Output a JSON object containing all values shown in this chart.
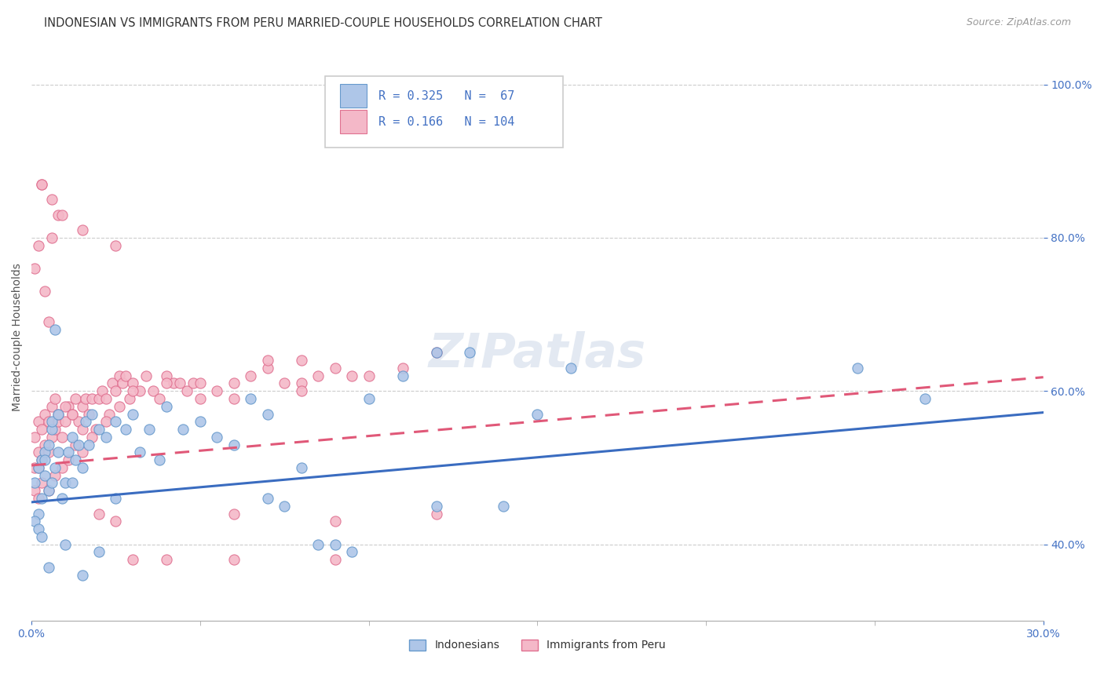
{
  "title": "INDONESIAN VS IMMIGRANTS FROM PERU MARRIED-COUPLE HOUSEHOLDS CORRELATION CHART",
  "source": "Source: ZipAtlas.com",
  "ylabel": "Married-couple Households",
  "xmin": 0.0,
  "xmax": 0.3,
  "ymin": 0.3,
  "ymax": 1.04,
  "R_indonesian": 0.325,
  "N_indonesian": 67,
  "R_peru": 0.166,
  "N_peru": 104,
  "color_indonesian_fill": "#aec6e8",
  "color_indonesian_edge": "#6699cc",
  "color_peru_fill": "#f4b8c8",
  "color_peru_edge": "#e07090",
  "color_indonesian_line": "#3a6cc0",
  "color_peru_line": "#e05878",
  "legend_label_indonesian": "Indonesians",
  "legend_label_peru": "Immigrants from Peru",
  "indonesian_x": [
    0.001,
    0.002,
    0.002,
    0.003,
    0.003,
    0.004,
    0.004,
    0.005,
    0.005,
    0.006,
    0.006,
    0.007,
    0.008,
    0.009,
    0.01,
    0.011,
    0.012,
    0.013,
    0.014,
    0.015,
    0.016,
    0.017,
    0.018,
    0.02,
    0.022,
    0.025,
    0.028,
    0.03,
    0.032,
    0.035,
    0.038,
    0.04,
    0.045,
    0.05,
    0.055,
    0.06,
    0.065,
    0.07,
    0.075,
    0.08,
    0.085,
    0.09,
    0.095,
    0.1,
    0.11,
    0.12,
    0.13,
    0.14,
    0.15,
    0.16,
    0.001,
    0.002,
    0.003,
    0.004,
    0.005,
    0.006,
    0.007,
    0.008,
    0.01,
    0.012,
    0.015,
    0.02,
    0.025,
    0.07,
    0.12,
    0.245,
    0.265
  ],
  "indonesian_y": [
    0.48,
    0.44,
    0.5,
    0.46,
    0.51,
    0.49,
    0.52,
    0.47,
    0.53,
    0.48,
    0.55,
    0.5,
    0.52,
    0.46,
    0.48,
    0.52,
    0.54,
    0.51,
    0.53,
    0.5,
    0.56,
    0.53,
    0.57,
    0.55,
    0.54,
    0.56,
    0.55,
    0.57,
    0.52,
    0.55,
    0.51,
    0.58,
    0.55,
    0.56,
    0.54,
    0.53,
    0.59,
    0.57,
    0.45,
    0.5,
    0.4,
    0.4,
    0.39,
    0.59,
    0.62,
    0.45,
    0.65,
    0.45,
    0.57,
    0.63,
    0.43,
    0.42,
    0.41,
    0.51,
    0.37,
    0.56,
    0.68,
    0.57,
    0.4,
    0.48,
    0.36,
    0.39,
    0.46,
    0.46,
    0.65,
    0.63,
    0.59
  ],
  "peru_x": [
    0.001,
    0.001,
    0.002,
    0.002,
    0.003,
    0.003,
    0.004,
    0.004,
    0.005,
    0.005,
    0.006,
    0.006,
    0.007,
    0.007,
    0.008,
    0.008,
    0.009,
    0.01,
    0.011,
    0.012,
    0.013,
    0.014,
    0.015,
    0.016,
    0.017,
    0.018,
    0.019,
    0.02,
    0.021,
    0.022,
    0.023,
    0.024,
    0.025,
    0.026,
    0.027,
    0.028,
    0.029,
    0.03,
    0.032,
    0.034,
    0.036,
    0.038,
    0.04,
    0.042,
    0.044,
    0.046,
    0.048,
    0.05,
    0.055,
    0.06,
    0.065,
    0.07,
    0.075,
    0.08,
    0.085,
    0.09,
    0.095,
    0.1,
    0.11,
    0.12,
    0.001,
    0.002,
    0.003,
    0.005,
    0.007,
    0.009,
    0.011,
    0.013,
    0.015,
    0.018,
    0.022,
    0.026,
    0.03,
    0.04,
    0.05,
    0.06,
    0.07,
    0.08,
    0.09,
    0.001,
    0.002,
    0.003,
    0.004,
    0.005,
    0.006,
    0.008,
    0.01,
    0.012,
    0.015,
    0.02,
    0.025,
    0.03,
    0.04,
    0.06,
    0.08,
    0.002,
    0.003,
    0.006,
    0.009,
    0.015,
    0.025,
    0.06,
    0.09,
    0.12
  ],
  "peru_y": [
    0.5,
    0.54,
    0.52,
    0.56,
    0.51,
    0.55,
    0.53,
    0.57,
    0.52,
    0.56,
    0.54,
    0.58,
    0.55,
    0.59,
    0.56,
    0.57,
    0.54,
    0.56,
    0.58,
    0.57,
    0.59,
    0.56,
    0.58,
    0.59,
    0.57,
    0.59,
    0.55,
    0.59,
    0.6,
    0.59,
    0.57,
    0.61,
    0.6,
    0.62,
    0.61,
    0.62,
    0.59,
    0.61,
    0.6,
    0.62,
    0.6,
    0.59,
    0.62,
    0.61,
    0.61,
    0.6,
    0.61,
    0.61,
    0.6,
    0.59,
    0.62,
    0.63,
    0.61,
    0.64,
    0.62,
    0.63,
    0.62,
    0.62,
    0.63,
    0.65,
    0.47,
    0.46,
    0.48,
    0.47,
    0.49,
    0.5,
    0.51,
    0.53,
    0.52,
    0.54,
    0.56,
    0.58,
    0.6,
    0.61,
    0.59,
    0.61,
    0.64,
    0.61,
    0.43,
    0.76,
    0.79,
    0.87,
    0.73,
    0.69,
    0.8,
    0.83,
    0.58,
    0.57,
    0.55,
    0.44,
    0.43,
    0.38,
    0.38,
    0.44,
    0.6,
    0.5,
    0.87,
    0.85,
    0.83,
    0.81,
    0.79,
    0.38,
    0.38,
    0.44
  ],
  "trend_indonesian_x0": 0.0,
  "trend_indonesian_y0": 0.455,
  "trend_indonesian_x1": 0.3,
  "trend_indonesian_y1": 0.572,
  "trend_peru_x0": 0.0,
  "trend_peru_y0": 0.503,
  "trend_peru_x1": 0.3,
  "trend_peru_y1": 0.618
}
